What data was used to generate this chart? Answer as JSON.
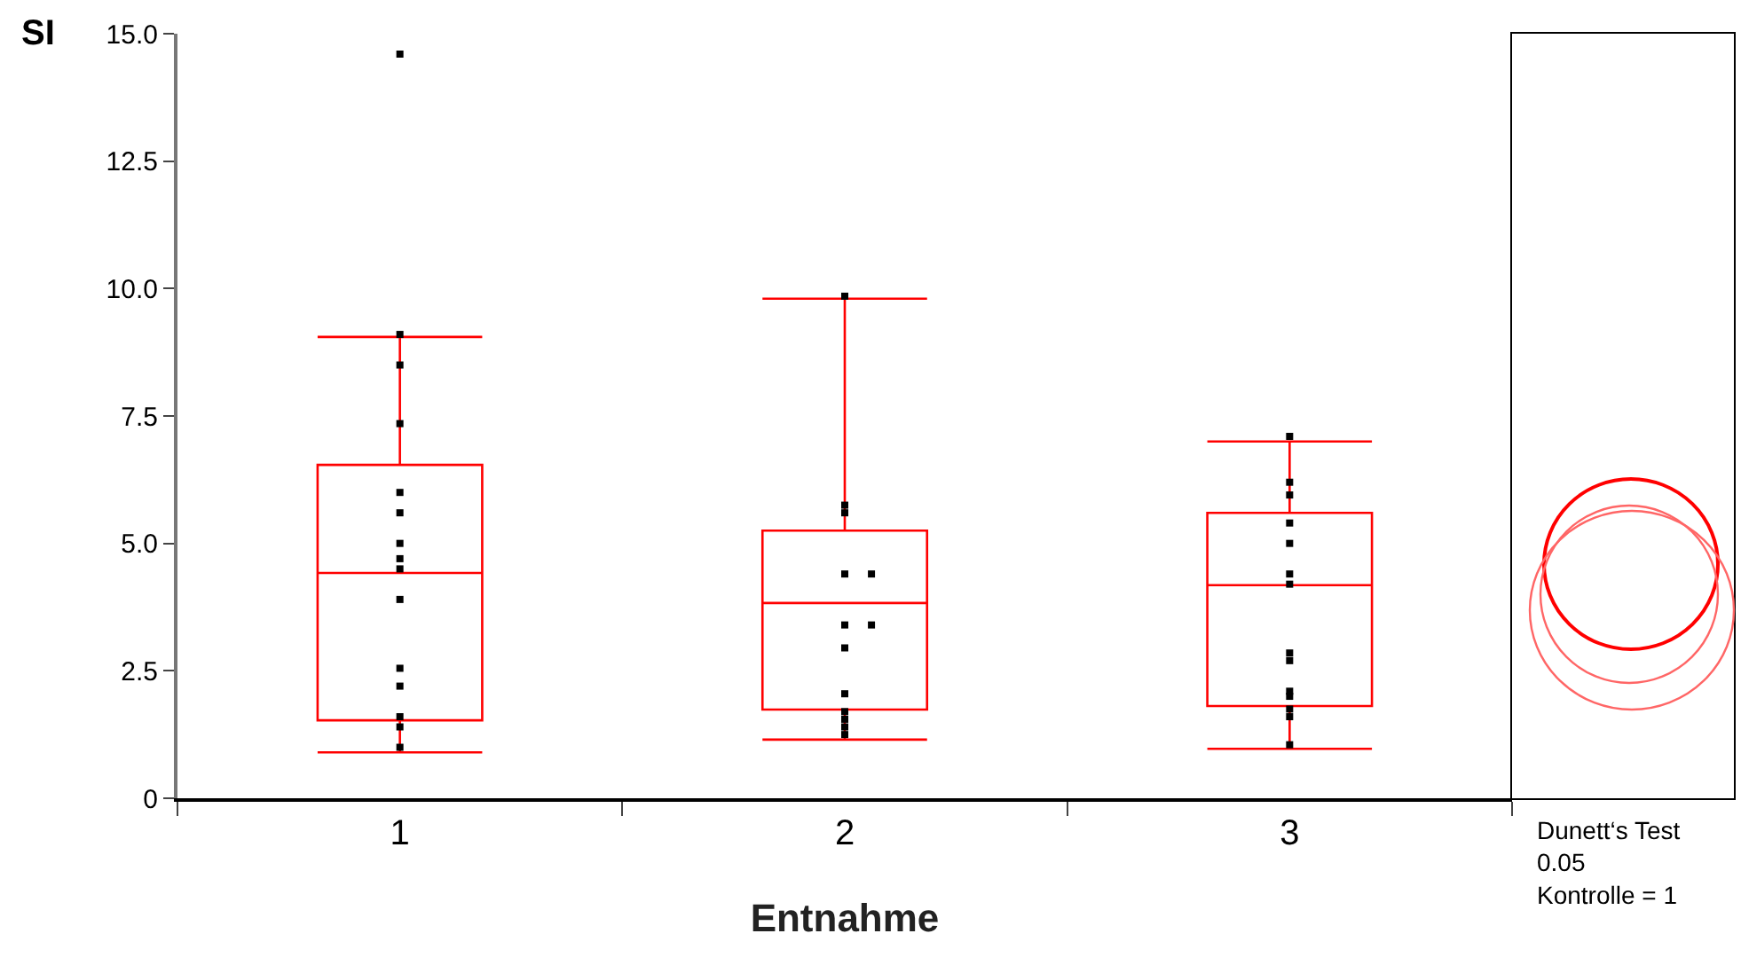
{
  "chart_data": [
    {
      "type": "box",
      "ylabel": "SI",
      "xlabel": "Entnahme",
      "categories": [
        "1",
        "2",
        "3"
      ],
      "color": "#ff0000",
      "boxes": [
        {
          "low": 0.9,
          "q1": 1.53,
          "median": 4.42,
          "q3": 6.54,
          "high": 9.05,
          "outliers": [
            14.6
          ]
        },
        {
          "low": 1.15,
          "q1": 1.74,
          "median": 3.83,
          "q3": 5.25,
          "high": 9.8
        },
        {
          "low": 0.97,
          "q1": 1.81,
          "median": 4.18,
          "q3": 5.6,
          "high": 7.0
        }
      ],
      "series": [
        {
          "type": "scatter",
          "color": "#000000",
          "x": [
            "1",
            "1",
            "1",
            "1",
            "1",
            "1",
            "1",
            "1",
            "1",
            "1",
            "1",
            "1",
            "1",
            "1",
            "2",
            "2",
            "2",
            "2",
            "2",
            "2",
            "2",
            "2",
            "2",
            "2",
            "2",
            "3",
            "3",
            "3",
            "3",
            "3",
            "3",
            "3",
            "3",
            "3",
            "3",
            "3",
            "3",
            "3",
            "3"
          ],
          "values": [
            9.1,
            8.5,
            7.35,
            6.0,
            5.6,
            5.0,
            4.7,
            4.5,
            3.9,
            2.55,
            2.2,
            1.6,
            1.4,
            1.0,
            9.85,
            5.75,
            5.6,
            4.4,
            3.4,
            2.95,
            2.05,
            1.7,
            1.55,
            1.4,
            1.25,
            7.1,
            6.2,
            5.95,
            5.4,
            5.0,
            4.4,
            4.2,
            2.85,
            2.7,
            2.1,
            2.0,
            1.75,
            1.6,
            1.05
          ]
        },
        {
          "type": "scatter",
          "color": "#000000",
          "x": [
            "2",
            "2"
          ],
          "values": [
            4.4,
            3.4
          ]
        }
      ],
      "ylim": [
        0,
        15
      ],
      "yticks": [
        0,
        2.5,
        {
          "value": 5,
          "label": "5.0"
        },
        {
          "value": 10,
          "label": "10.0"
        },
        {
          "value": 7.5,
          "label": "7.5"
        },
        {
          "value": 12.5,
          "label": "12.5"
        },
        {
          "value": 15,
          "label": "15.0"
        }
      ],
      "marker": "square"
    },
    {
      "type": "other",
      "annotations": [
        "Dunett‘s Test",
        "0.05",
        "Kontrolle = 1"
      ]
    }
  ]
}
